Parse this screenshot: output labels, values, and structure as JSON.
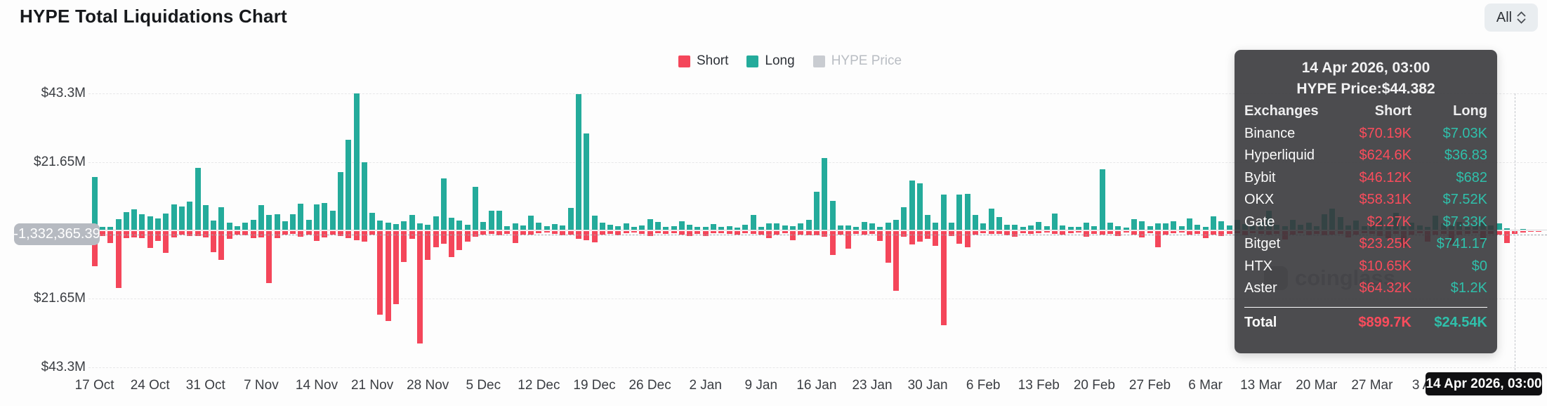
{
  "header": {
    "title": "HYPE Total Liquidations Chart",
    "range_selector": {
      "value": "All"
    }
  },
  "legend": {
    "items": [
      {
        "label": "Short",
        "color": "#f4465a",
        "active": true
      },
      {
        "label": "Long",
        "color": "#24ab9b",
        "active": true
      },
      {
        "label": "HYPE Price",
        "color": "#c9ccd1",
        "active": false
      }
    ]
  },
  "colors": {
    "short": "#f4465a",
    "long": "#24ab9b",
    "disabled": "#c9ccd1",
    "tooltip_short": "#fa4c5c",
    "tooltip_long": "#2fc0ab"
  },
  "y_axis": {
    "ticks": [
      {
        "label": "$43.3M",
        "value": 43.3
      },
      {
        "label": "$21.65M",
        "value": 21.65
      },
      {
        "label": "$21.65M",
        "value": -21.65
      },
      {
        "label": "$43.3M",
        "value": -43.3
      }
    ],
    "crosshair_badge": "-1,332,365.39",
    "crosshair_value": -1.33
  },
  "x_axis": {
    "tick_labels": [
      "17 Oct",
      "24 Oct",
      "31 Oct",
      "7 Nov",
      "14 Nov",
      "21 Nov",
      "28 Nov",
      "5 Dec",
      "12 Dec",
      "19 Dec",
      "26 Dec",
      "2 Jan",
      "9 Jan",
      "16 Jan",
      "23 Jan",
      "30 Jan",
      "6 Feb",
      "13 Feb",
      "20 Feb",
      "27 Feb",
      "6 Mar",
      "13 Mar",
      "20 Mar",
      "27 Mar",
      "3 Apr"
    ]
  },
  "crosshair_date_badge": "14 Apr 2026, 03:00",
  "watermark": {
    "label": "coinglass"
  },
  "tooltip": {
    "title": "14 Apr 2026, 03:00",
    "price_line": "HYPE Price:$44.382",
    "columns": [
      "Exchanges",
      "Short",
      "Long"
    ],
    "rows": [
      {
        "exchange": "Binance",
        "short": "$70.19K",
        "long": "$7.03K"
      },
      {
        "exchange": "Hyperliquid",
        "short": "$624.6K",
        "long": "$36.83"
      },
      {
        "exchange": "Bybit",
        "short": "$46.12K",
        "long": "$682"
      },
      {
        "exchange": "OKX",
        "short": "$58.31K",
        "long": "$7.52K"
      },
      {
        "exchange": "Gate",
        "short": "$2.27K",
        "long": "$7.33K"
      },
      {
        "exchange": "Bitget",
        "short": "$23.25K",
        "long": "$741.17"
      },
      {
        "exchange": "HTX",
        "short": "$10.65K",
        "long": "$0"
      },
      {
        "exchange": "Aster",
        "short": "$64.32K",
        "long": "$1.2K"
      }
    ],
    "total": {
      "exchange": "Total",
      "short": "$899.7K",
      "long": "$24.54K"
    }
  },
  "chart_data": {
    "type": "bar",
    "title": "HYPE Total Liquidations Chart",
    "unit": "$M",
    "x_start": "17 Oct",
    "x_end": "14 Apr 2026",
    "x_tick_interval_days": 7,
    "ylim": [
      -43.3,
      43.3
    ],
    "grid": true,
    "legend_position": "top-center",
    "hovered_index": 179,
    "series": [
      {
        "name": "Long",
        "direction": "up",
        "color": "#24ab9b",
        "values_musd": [
          16.6,
          0.9,
          0.8,
          3.4,
          5.6,
          6.4,
          5.0,
          4.3,
          3.6,
          5.1,
          8.1,
          7.4,
          9.0,
          19.5,
          7.7,
          2.9,
          7.1,
          2.2,
          1.2,
          2.3,
          3.1,
          7.7,
          4.6,
          4.9,
          2.7,
          4.9,
          8.2,
          3.2,
          8.0,
          8.4,
          6.1,
          18.3,
          28.5,
          43.2,
          21.4,
          5.3,
          3.0,
          2.2,
          1.8,
          2.6,
          4.7,
          2.0,
          1.5,
          4.2,
          16.2,
          3.7,
          2.8,
          1.5,
          13.5,
          2.5,
          6.1,
          6.0,
          1.2,
          2.1,
          1.4,
          4.5,
          2.3,
          1.1,
          1.8,
          1.4,
          6.8,
          42.8,
          30.4,
          4.4,
          2.3,
          1.5,
          1.2,
          1.9,
          1.0,
          1.4,
          3.3,
          2.4,
          0.8,
          1.1,
          2.6,
          1.6,
          0.9,
          1.0,
          1.7,
          0.8,
          1.2,
          0.7,
          1.6,
          4.6,
          1.0,
          2.0,
          1.9,
          1.4,
          1.1,
          2.0,
          3.1,
          12.0,
          22.6,
          9.1,
          1.3,
          1.4,
          0.9,
          2.4,
          2.1,
          1.0,
          2.3,
          3.2,
          7.1,
          15.6,
          14.6,
          4.7,
          2.2,
          11.2,
          2.3,
          11.1,
          11.3,
          4.6,
          2.1,
          6.6,
          4.1,
          1.6,
          1.5,
          0.8,
          1.3,
          2.5,
          1.1,
          5.2,
          1.3,
          0.9,
          1.0,
          2.2,
          1.2,
          19.2,
          2.3,
          1.1,
          0.7,
          3.4,
          2.6,
          1.2,
          2.1,
          2.0,
          2.6,
          1.1,
          3.6,
          1.5,
          1.0,
          4.3,
          2.7,
          1.4,
          3.2,
          1.8,
          1.1,
          2.4,
          5.9,
          1.6,
          1.2,
          3.1,
          1.5,
          2.2,
          1.1,
          5.0,
          6.6,
          4.1,
          1.3,
          2.8,
          1.2,
          1.7,
          3.6,
          1.2,
          5.4,
          1.1,
          2.3,
          1.4,
          0.9,
          4.4,
          2.1,
          1.3,
          2.5,
          1.0,
          1.8,
          2.2,
          1.4,
          2.0,
          0.5,
          0.02,
          0.2,
          0.1,
          0.0
        ]
      },
      {
        "name": "Short",
        "direction": "down",
        "color": "#f4465a",
        "values_musd": [
          11.2,
          1.6,
          3.8,
          18.0,
          2.2,
          2.0,
          2.3,
          5.4,
          3.2,
          6.8,
          2.1,
          1.2,
          1.5,
          1.6,
          2.1,
          6.6,
          9.1,
          2.5,
          1.0,
          1.4,
          2.2,
          2.0,
          16.5,
          2.3,
          1.2,
          0.9,
          1.7,
          1.1,
          3.1,
          1.9,
          1.0,
          1.5,
          2.3,
          2.9,
          3.4,
          1.0,
          26.5,
          28.5,
          23.0,
          9.7,
          2.5,
          35.5,
          9.0,
          5.0,
          4.1,
          8.3,
          6.1,
          3.4,
          1.8,
          1.1,
          0.9,
          1.3,
          0.8,
          3.8,
          1.1,
          1.2,
          0.7,
          0.5,
          0.9,
          1.4,
          1.1,
          2.4,
          2.9,
          3.6,
          1.0,
          0.8,
          1.3,
          0.6,
          0.5,
          0.9,
          1.5,
          0.6,
          0.9,
          0.6,
          1.1,
          1.6,
          0.8,
          1.6,
          0.7,
          0.6,
          0.8,
          1.0,
          0.6,
          0.9,
          1.2,
          2.2,
          1.0,
          0.7,
          2.9,
          1.1,
          1.3,
          1.3,
          1.7,
          7.6,
          1.1,
          5.6,
          0.8,
          1.2,
          0.9,
          3.1,
          10.1,
          18.8,
          1.8,
          4.2,
          3.3,
          2.4,
          4.7,
          29.8,
          1.5,
          4.1,
          5.2,
          1.1,
          0.7,
          0.8,
          0.9,
          1.3,
          1.8,
          0.7,
          0.9,
          0.6,
          0.5,
          0.9,
          1.2,
          0.6,
          0.4,
          1.7,
          0.8,
          1.1,
          0.9,
          1.6,
          0.5,
          1.0,
          2.1,
          0.6,
          5.1,
          1.2,
          0.7,
          0.5,
          1.1,
          0.8,
          2.3,
          1.1,
          1.6,
          0.9,
          0.7,
          1.3,
          0.6,
          0.8,
          1.2,
          0.9,
          2.7,
          1.0,
          0.6,
          1.3,
          0.9,
          1.4,
          1.0,
          0.9,
          2.1,
          1.1,
          0.7,
          0.8,
          1.5,
          2.2,
          0.8,
          4.9,
          1.2,
          0.6,
          3.3,
          1.0,
          0.8,
          4.2,
          1.1,
          0.9,
          0.6,
          3.4,
          0.8,
          1.2,
          3.8,
          0.9,
          0.5,
          0.3,
          0.2
        ]
      }
    ]
  }
}
